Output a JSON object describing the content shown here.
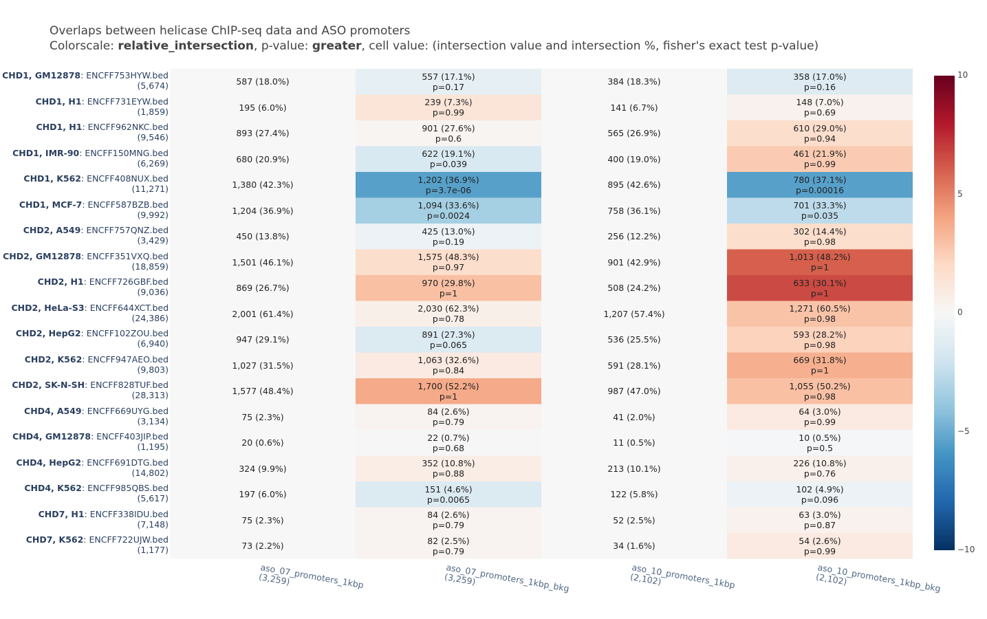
{
  "title": {
    "line1": "Overlaps between helicase ChIP-seq data and ASO promoters",
    "line2_prefix": "Colorscale: ",
    "line2_scale": "relative_intersection",
    "line2_mid": ", p-value: ",
    "line2_pvalue": "greater",
    "line2_suffix": ", cell value: (intersection value and intersection %, fisher's exact test p-value)"
  },
  "chart_data": {
    "type": "heatmap",
    "colorscale": "RdBu",
    "zlim": [
      -10,
      10
    ],
    "colorbar_ticks": [
      "10",
      "5",
      "0",
      "−5",
      "−10"
    ],
    "colorbar_tick_values": [
      10,
      5,
      0,
      -5,
      -10
    ],
    "columns": [
      {
        "name": "aso_07_promoters_1kbp",
        "count": "(3,259)"
      },
      {
        "name": "aso_07_promoters_1kbp_bkg",
        "count": "(3,259)"
      },
      {
        "name": "aso_10_promoters_1kbp",
        "count": "(2,102)"
      },
      {
        "name": "aso_10_promoters_1kbp_bkg",
        "count": "(2,102)"
      }
    ],
    "rows": [
      {
        "bold": "CHD1, GM12878",
        "file": ": ENCFF753HYW.bed",
        "count": "(5,674)",
        "cells": [
          [
            "587 (18.0%)",
            ""
          ],
          [
            "557 (17.1%)",
            "p=0.17"
          ],
          [
            "384 (18.3%)",
            ""
          ],
          [
            "358 (17.0%)",
            "p=0.16"
          ]
        ],
        "z": [
          0,
          -0.9,
          0,
          -1.3
        ]
      },
      {
        "bold": "CHD1, H1",
        "file": ": ENCFF731EYW.bed",
        "count": "(1,859)",
        "cells": [
          [
            "195 (6.0%)",
            ""
          ],
          [
            "239 (7.3%)",
            "p=0.99"
          ],
          [
            "141 (6.7%)",
            ""
          ],
          [
            "148 (7.0%)",
            "p=0.69"
          ]
        ],
        "z": [
          0,
          1.3,
          0,
          0.4
        ]
      },
      {
        "bold": "CHD1, H1",
        "file": ": ENCFF962NKC.bed",
        "count": "(9,546)",
        "cells": [
          [
            "893 (27.4%)",
            ""
          ],
          [
            "901 (27.6%)",
            "p=0.6"
          ],
          [
            "565 (26.9%)",
            ""
          ],
          [
            "610 (29.0%)",
            "p=0.94"
          ]
        ],
        "z": [
          0,
          0.2,
          0,
          1.8
        ]
      },
      {
        "bold": "CHD1, IMR-90",
        "file": ": ENCFF150MNG.bed",
        "count": "(6,269)",
        "cells": [
          [
            "680 (20.9%)",
            ""
          ],
          [
            "622 (19.1%)",
            "p=0.039"
          ],
          [
            "400 (19.0%)",
            ""
          ],
          [
            "461 (21.9%)",
            "p=0.99"
          ]
        ],
        "z": [
          0,
          -1.6,
          0,
          2.6
        ]
      },
      {
        "bold": "CHD1, K562",
        "file": ": ENCFF408NUX.bed",
        "count": "(11,271)",
        "cells": [
          [
            "1,380 (42.3%)",
            ""
          ],
          [
            "1,202 (36.9%)",
            "p=3.7e-06"
          ],
          [
            "895 (42.6%)",
            ""
          ],
          [
            "780 (37.1%)",
            "p=0.00016"
          ]
        ],
        "z": [
          0,
          -5.5,
          0,
          -5.5
        ]
      },
      {
        "bold": "CHD1, MCF-7",
        "file": ": ENCFF587BZB.bed",
        "count": "(9,992)",
        "cells": [
          [
            "1,204 (36.9%)",
            ""
          ],
          [
            "1,094 (33.6%)",
            "p=0.0024"
          ],
          [
            "758 (36.1%)",
            ""
          ],
          [
            "701 (33.3%)",
            "p=0.035"
          ]
        ],
        "z": [
          0,
          -3.4,
          0,
          -2.6
        ]
      },
      {
        "bold": "CHD2, A549",
        "file": ": ENCFF757QNZ.bed",
        "count": "(3,429)",
        "cells": [
          [
            "450 (13.8%)",
            ""
          ],
          [
            "425 (13.0%)",
            "p=0.19"
          ],
          [
            "256 (12.2%)",
            ""
          ],
          [
            "302 (14.4%)",
            "p=0.98"
          ]
        ],
        "z": [
          0,
          -0.6,
          0,
          1.8
        ]
      },
      {
        "bold": "CHD2, GM12878",
        "file": ": ENCFF351VXQ.bed",
        "count": "(18,859)",
        "cells": [
          [
            "1,501 (46.1%)",
            ""
          ],
          [
            "1,575 (48.3%)",
            "p=0.97"
          ],
          [
            "901 (42.9%)",
            ""
          ],
          [
            "1,013 (48.2%)",
            "p=1"
          ]
        ],
        "z": [
          0,
          1.8,
          0,
          6.0
        ]
      },
      {
        "bold": "CHD2, H1",
        "file": ": ENCFF726GBF.bed",
        "count": "(9,036)",
        "cells": [
          [
            "869 (26.7%)",
            ""
          ],
          [
            "970 (29.8%)",
            "p=1"
          ],
          [
            "508 (24.2%)",
            ""
          ],
          [
            "633 (30.1%)",
            "p=1"
          ]
        ],
        "z": [
          0,
          3.0,
          0,
          6.6
        ]
      },
      {
        "bold": "CHD2, HeLa-S3",
        "file": ": ENCFF644XCT.bed",
        "count": "(24,386)",
        "cells": [
          [
            "2,001 (61.4%)",
            ""
          ],
          [
            "2,030 (62.3%)",
            "p=0.78"
          ],
          [
            "1,207 (57.4%)",
            ""
          ],
          [
            "1,271 (60.5%)",
            "p=0.98"
          ]
        ],
        "z": [
          0,
          0.6,
          0,
          2.9
        ]
      },
      {
        "bold": "CHD2, HepG2",
        "file": ": ENCFF102ZOU.bed",
        "count": "(6,940)",
        "cells": [
          [
            "947 (29.1%)",
            ""
          ],
          [
            "891 (27.3%)",
            "p=0.065"
          ],
          [
            "536 (25.5%)",
            ""
          ],
          [
            "593 (28.2%)",
            "p=0.98"
          ]
        ],
        "z": [
          0,
          -1.4,
          0,
          2.3
        ]
      },
      {
        "bold": "CHD2, K562",
        "file": ": ENCFF947AEO.bed",
        "count": "(9,803)",
        "cells": [
          [
            "1,027 (31.5%)",
            ""
          ],
          [
            "1,063 (32.6%)",
            "p=0.84"
          ],
          [
            "591 (28.1%)",
            ""
          ],
          [
            "669 (31.8%)",
            "p=1"
          ]
        ],
        "z": [
          0,
          0.9,
          0,
          3.6
        ]
      },
      {
        "bold": "CHD2, SK-N-SH",
        "file": ": ENCFF828TUF.bed",
        "count": "(28,313)",
        "cells": [
          [
            "1,577 (48.4%)",
            ""
          ],
          [
            "1,700 (52.2%)",
            "p=1"
          ],
          [
            "987 (47.0%)",
            ""
          ],
          [
            "1,055 (50.2%)",
            "p=0.98"
          ]
        ],
        "z": [
          0,
          3.8,
          0,
          3.0
        ]
      },
      {
        "bold": "CHD4, A549",
        "file": ": ENCFF669UYG.bed",
        "count": "(3,134)",
        "cells": [
          [
            "75 (2.3%)",
            ""
          ],
          [
            "84 (2.6%)",
            "p=0.79"
          ],
          [
            "41 (2.0%)",
            ""
          ],
          [
            "64 (3.0%)",
            "p=0.99"
          ]
        ],
        "z": [
          0,
          0.3,
          0,
          0.9
        ]
      },
      {
        "bold": "CHD4, GM12878",
        "file": ": ENCFF403JIP.bed",
        "count": "(1,195)",
        "cells": [
          [
            "20 (0.6%)",
            ""
          ],
          [
            "22 (0.7%)",
            "p=0.68"
          ],
          [
            "11 (0.5%)",
            ""
          ],
          [
            "10 (0.5%)",
            "p=0.5"
          ]
        ],
        "z": [
          0,
          0.05,
          0,
          -0.1
        ]
      },
      {
        "bold": "CHD4, HepG2",
        "file": ": ENCFF691DTG.bed",
        "count": "(14,802)",
        "cells": [
          [
            "324 (9.9%)",
            ""
          ],
          [
            "352 (10.8%)",
            "p=0.88"
          ],
          [
            "213 (10.1%)",
            ""
          ],
          [
            "226 (10.8%)",
            "p=0.76"
          ]
        ],
        "z": [
          0,
          0.7,
          0,
          0.5
        ]
      },
      {
        "bold": "CHD4, K562",
        "file": ": ENCFF985QBS.bed",
        "count": "(5,617)",
        "cells": [
          [
            "197 (6.0%)",
            ""
          ],
          [
            "151 (4.6%)",
            "p=0.0065"
          ],
          [
            "122 (5.8%)",
            ""
          ],
          [
            "102 (4.9%)",
            "p=0.096"
          ]
        ],
        "z": [
          0,
          -1.4,
          0,
          -0.6
        ]
      },
      {
        "bold": "CHD7, H1",
        "file": ": ENCFF338IDU.bed",
        "count": "(7,148)",
        "cells": [
          [
            "75 (2.3%)",
            ""
          ],
          [
            "84 (2.6%)",
            "p=0.79"
          ],
          [
            "52 (2.5%)",
            ""
          ],
          [
            "63 (3.0%)",
            "p=0.87"
          ]
        ],
        "z": [
          0,
          0.3,
          0,
          0.4
        ]
      },
      {
        "bold": "CHD7, K562",
        "file": ": ENCFF722UJW.bed",
        "count": "(1,177)",
        "cells": [
          [
            "73 (2.2%)",
            ""
          ],
          [
            "82 (2.5%)",
            "p=0.79"
          ],
          [
            "34 (1.6%)",
            ""
          ],
          [
            "54 (2.6%)",
            "p=0.99"
          ]
        ],
        "z": [
          0,
          0.3,
          0,
          0.9
        ]
      }
    ]
  }
}
